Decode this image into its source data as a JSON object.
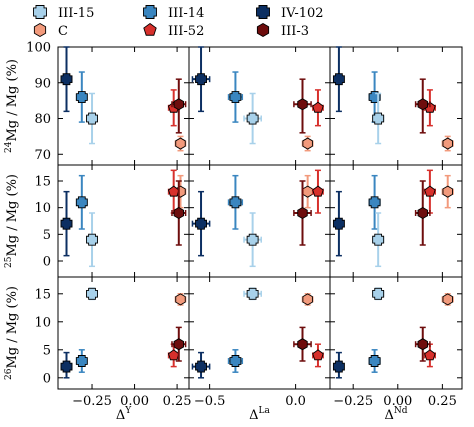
{
  "chart_data": {
    "type": "scatter",
    "legend": {
      "placement": "top",
      "entries": [
        {
          "name": "III-15",
          "color": "#a8d1ea",
          "marker": "plus"
        },
        {
          "name": "C",
          "color": "#f29a7c",
          "marker": "hexagon"
        },
        {
          "name": "III-14",
          "color": "#3a86c0",
          "marker": "plus"
        },
        {
          "name": "III-52",
          "color": "#d7302c",
          "marker": "pentagon"
        },
        {
          "name": "IV-102",
          "color": "#0c2f62",
          "marker": "plus"
        },
        {
          "name": "III-3",
          "color": "#6e0d0d",
          "marker": "hexagon"
        }
      ]
    },
    "columns": [
      {
        "xlabel_base": "Δ",
        "xlabel_sup": "Y",
        "xlim": [
          -0.45,
          0.32
        ],
        "xticks": [
          -0.25,
          0.0,
          0.25
        ],
        "xticklabels": [
          "−0.25",
          "0.00",
          "0.25"
        ]
      },
      {
        "xlabel_base": "Δ",
        "xlabel_sup": "La",
        "xlim": [
          -0.62,
          0.2
        ],
        "xticks": [
          -0.5,
          0.0
        ],
        "xticklabels": [
          "−0.5",
          "0.0"
        ]
      },
      {
        "xlabel_base": "Δ",
        "xlabel_sup": "Nd",
        "xlim": [
          -0.38,
          0.36
        ],
        "xticks": [
          -0.25,
          0.0,
          0.25
        ],
        "xticklabels": [
          "−0.25",
          "0.00",
          "0.25"
        ]
      }
    ],
    "rows": [
      {
        "ylabel_sup": "24",
        "ylabel_rest": "Mg / Mg (%)",
        "ylim": [
          67,
          100
        ],
        "yticks": [
          70,
          80,
          90,
          100
        ],
        "yticklabels": [
          "70",
          "80",
          "90",
          "100"
        ]
      },
      {
        "ylabel_sup": "25",
        "ylabel_rest": "Mg / Mg (%)",
        "ylim": [
          -3,
          18
        ],
        "yticks": [
          0,
          5,
          10,
          15
        ],
        "yticklabels": [
          "0",
          "5",
          "10",
          "15"
        ]
      },
      {
        "ylabel_sup": "26",
        "ylabel_rest": "Mg / Mg (%)",
        "ylim": [
          -2,
          18
        ],
        "yticks": [
          0,
          5,
          10,
          15
        ],
        "yticklabels": [
          "0",
          "5",
          "10",
          "15"
        ]
      }
    ],
    "series": [
      {
        "name": "IV-102",
        "x": [
          -0.4,
          -0.55,
          -0.33
        ],
        "xerr": [
          0.03,
          0.05,
          0.02
        ],
        "y": [
          91,
          7,
          2
        ],
        "yerr_up": [
          9,
          6,
          2.5
        ],
        "yerr_down": [
          9,
          6,
          2
        ]
      },
      {
        "name": "III-14",
        "x": [
          -0.31,
          -0.35,
          -0.13
        ],
        "xerr": [
          0.03,
          0.04,
          0.03
        ],
        "y": [
          86,
          11,
          3
        ],
        "yerr_up": [
          7,
          5,
          2
        ],
        "yerr_down": [
          7,
          5,
          2
        ]
      },
      {
        "name": "III-15",
        "x": [
          -0.25,
          -0.25,
          -0.11
        ],
        "xerr": [
          0.03,
          0.05,
          0.03
        ],
        "y": [
          80,
          4,
          15
        ],
        "yerr_up": [
          7,
          5,
          1
        ],
        "yerr_down": [
          7,
          5,
          1
        ]
      },
      {
        "name": "C",
        "x": [
          0.27,
          0.07,
          0.28
        ],
        "xerr": [
          0.03,
          0.03,
          0.03
        ],
        "y": [
          73,
          13,
          14
        ],
        "yerr_up": [
          2,
          3,
          1
        ],
        "yerr_down": [
          2,
          3,
          1
        ]
      },
      {
        "name": "III-52",
        "x": [
          0.23,
          0.13,
          0.18
        ],
        "xerr": [
          0.03,
          0.03,
          0.03
        ],
        "y": [
          83,
          13,
          4
        ],
        "yerr_up": [
          5,
          4,
          2
        ],
        "yerr_down": [
          5,
          4,
          2
        ]
      },
      {
        "name": "III-3",
        "x": [
          0.26,
          0.04,
          0.14
        ],
        "xerr": [
          0.04,
          0.05,
          0.04
        ],
        "y": [
          84,
          9,
          6
        ],
        "yerr_up": [
          7,
          6,
          3
        ],
        "yerr_down": [
          8,
          6,
          3
        ]
      }
    ]
  }
}
